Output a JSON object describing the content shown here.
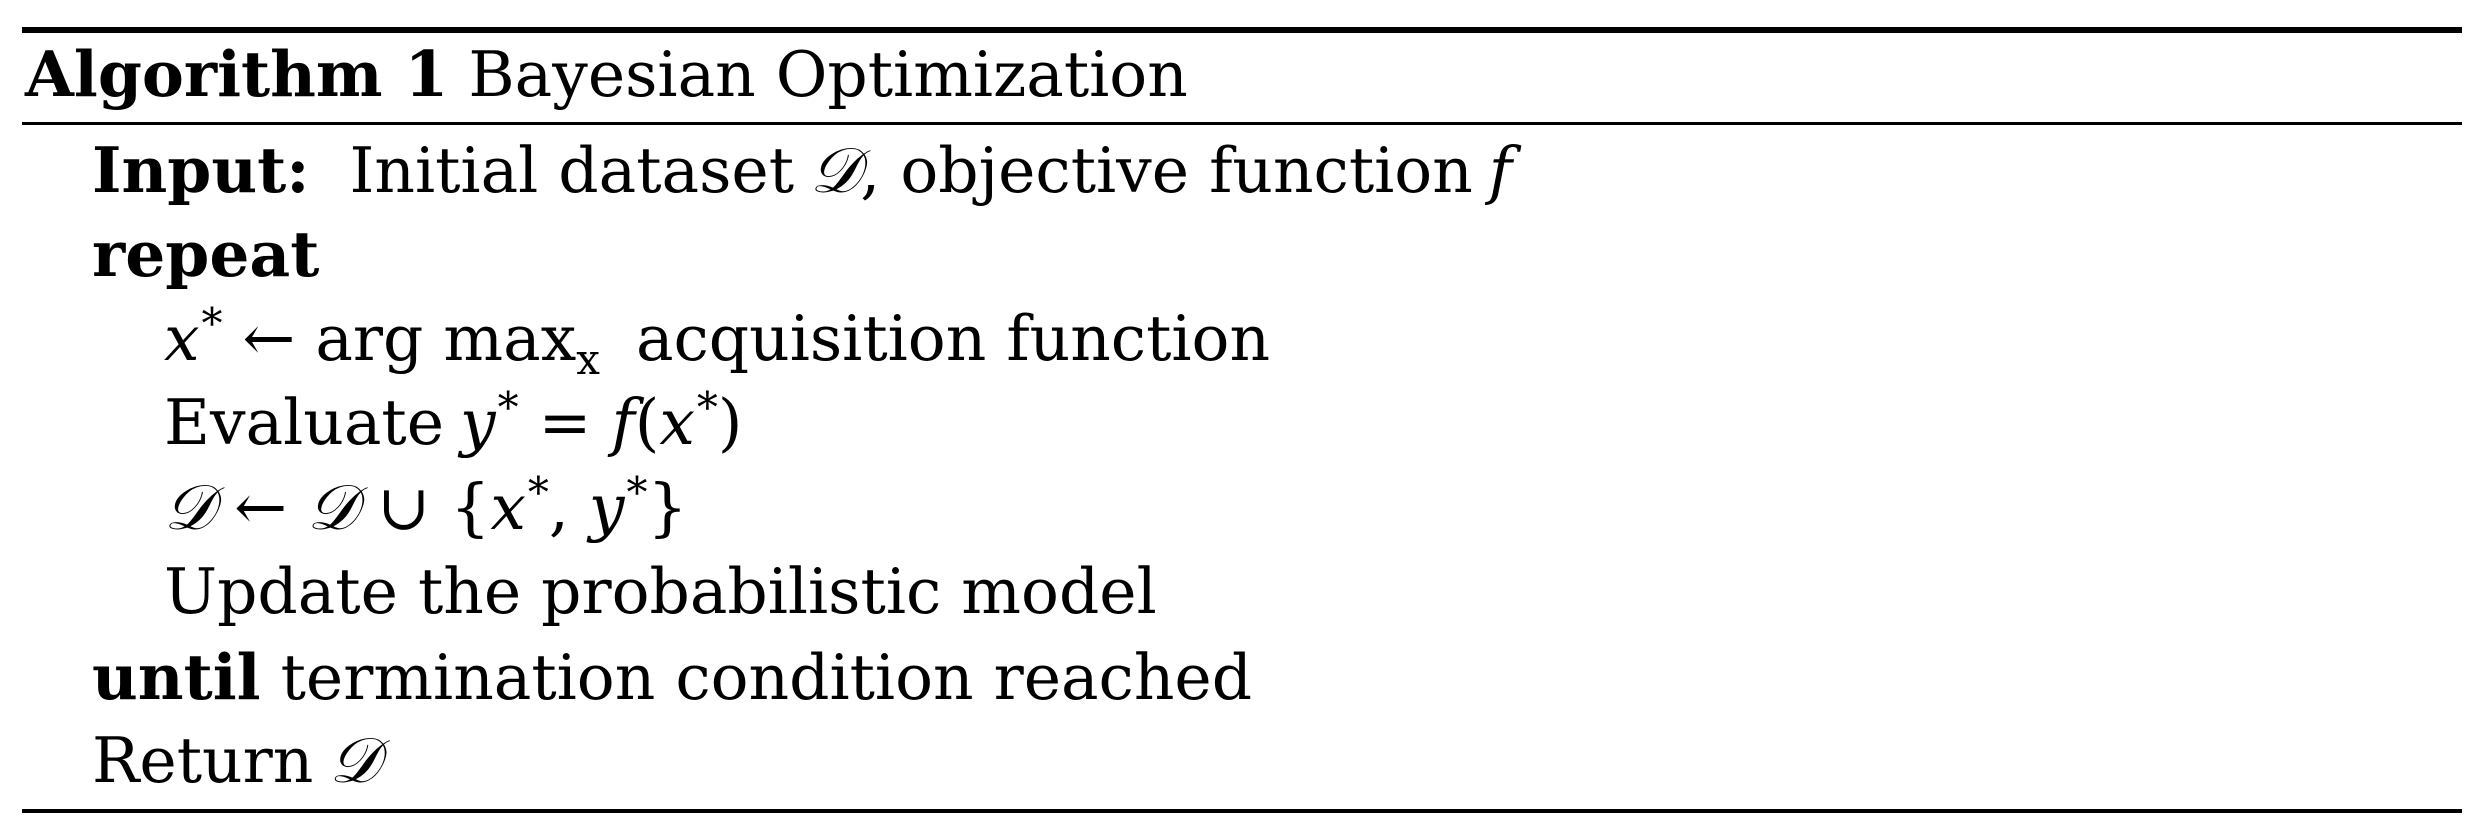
{
  "algorithm": {
    "label": "Algorithm 1",
    "title": "Bayesian Optimization"
  },
  "lines": {
    "input_keyword": "Input:",
    "input_text_1": "Initial dataset",
    "input_dataset_symbol": "𝒟",
    "input_text_2": ", objective function",
    "input_function_symbol": "f",
    "repeat_keyword": "repeat",
    "step1_var": "x",
    "step1_star": "*",
    "step1_arrow": " ← arg max",
    "step1_sub": "x",
    "step1_text": " acquisition function",
    "step2_text": "Evaluate",
    "step2_y": "y",
    "step2_star": "*",
    "step2_eq": " = ",
    "step2_f": "f",
    "step2_paren_open": "(",
    "step2_x": "x",
    "step2_star2": "*",
    "step2_paren_close": ")",
    "step3_d1": "𝒟",
    "step3_arrow": " ← ",
    "step3_d2": "𝒟",
    "step3_union": " ∪ {",
    "step3_x": "x",
    "step3_star1": "*",
    "step3_comma": ", ",
    "step3_y": "y",
    "step3_star2": "*",
    "step3_close": "}",
    "step4_text": "Update the probabilistic model",
    "until_keyword": "until",
    "until_text": " termination condition reached",
    "return_text": "Return",
    "return_symbol": "𝒟"
  }
}
